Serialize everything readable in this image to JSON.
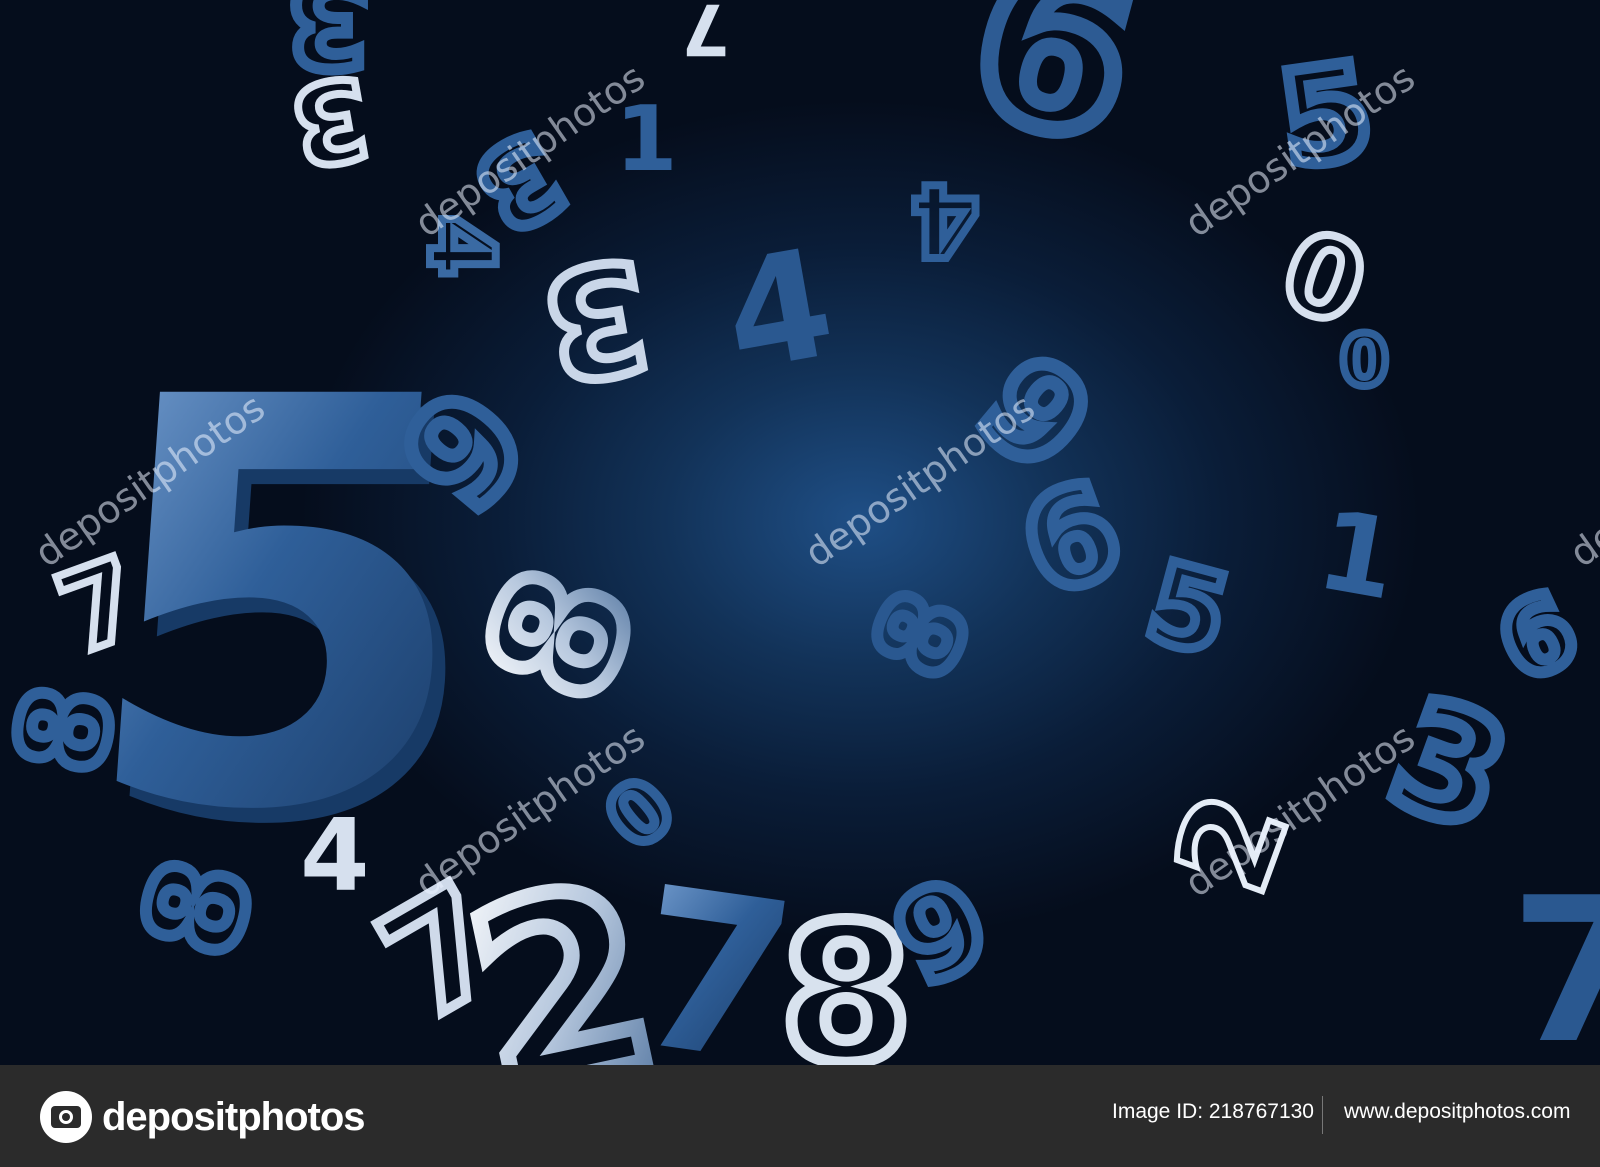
{
  "watermark": {
    "text": "depositphotos",
    "color": "#ebf2ff"
  },
  "footer": {
    "brand": "depositphotos",
    "image_id_label": "Image ID: 218767130",
    "site_url": "www.depositphotos.com",
    "background_color": "#2b2b2b"
  },
  "scene": {
    "glyphs": [
      "5",
      "8",
      "0",
      "9",
      "3",
      "4",
      "7",
      "1",
      "6",
      "2"
    ]
  }
}
